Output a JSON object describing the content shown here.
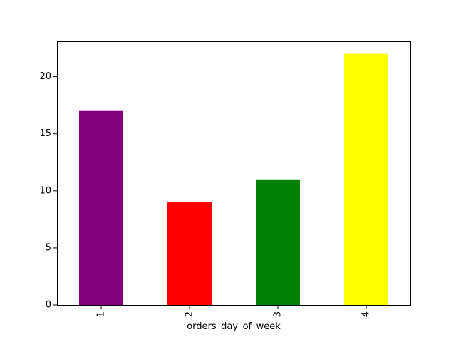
{
  "chart_data": {
    "type": "bar",
    "title": "",
    "xlabel": "orders_day_of_week",
    "ylabel": "",
    "categories": [
      "1",
      "2",
      "3",
      "4"
    ],
    "values": [
      17,
      9,
      11,
      22
    ],
    "bar_colors": [
      "#800080",
      "#ff0000",
      "#008000",
      "#ffff00"
    ],
    "ylim": [
      0,
      23.1
    ],
    "yticks": [
      0,
      5,
      10,
      15,
      20
    ],
    "ytick_labels": [
      "0",
      "5",
      "10",
      "15",
      "20"
    ],
    "xtick_rotation": "vertical",
    "grid": false,
    "legend": "none"
  }
}
